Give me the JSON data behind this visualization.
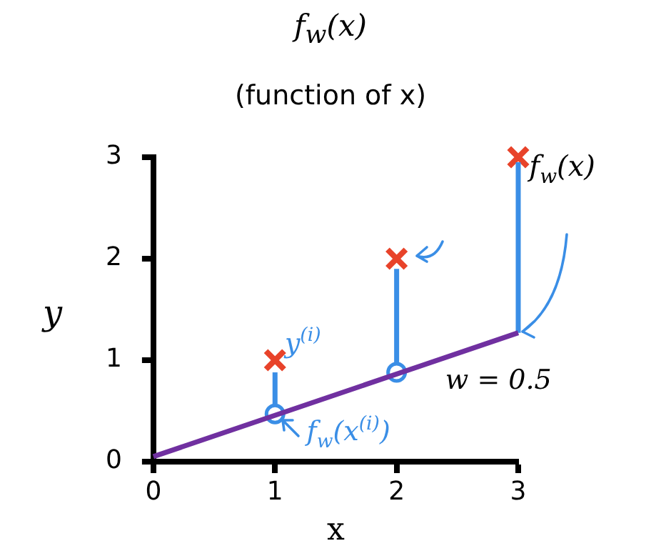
{
  "chart_data": {
    "type": "scatter",
    "title": "f$_{w}$(x)",
    "subtitle": "(function of x)",
    "xlabel": "x",
    "ylabel": "y",
    "xlim": [
      0,
      3
    ],
    "xticks": [
      0,
      1,
      2,
      3
    ],
    "ylim": [
      0,
      3
    ],
    "yticks": [
      0,
      1,
      2,
      3
    ],
    "grid": false,
    "legend": false,
    "series": [
      {
        "type": "line",
        "color": "#7030a0",
        "x": [
          0,
          3
        ],
        "values": [
          0.05,
          1.27
        ],
        "marker": "none"
      },
      {
        "type": "line",
        "color": "#3a8ee6",
        "x": [
          1,
          1
        ],
        "values": [
          0.55,
          0.88
        ],
        "marker": "none"
      },
      {
        "type": "line",
        "color": "#3a8ee6",
        "x": [
          2,
          2
        ],
        "values": [
          0.95,
          1.9
        ],
        "marker": "none"
      },
      {
        "type": "line",
        "color": "#3a8ee6",
        "x": [
          3,
          3
        ],
        "values": [
          1.27,
          2.95
        ],
        "marker": "none"
      },
      {
        "type": "scatter",
        "color": "#3a8ee6",
        "x": [
          1,
          2
        ],
        "values": [
          0.47,
          0.88
        ],
        "marker": "circle"
      },
      {
        "type": "scatter",
        "color": "#e8432a",
        "x": [
          1,
          2,
          3
        ],
        "values": [
          1,
          2,
          3
        ],
        "marker": "cross"
      }
    ],
    "annotations": [
      "y$^{(i)}$",
      "f$_{w}$(x$^{(i)}$)",
      "f$_{w}$(x)",
      "w = 0.5"
    ]
  }
}
